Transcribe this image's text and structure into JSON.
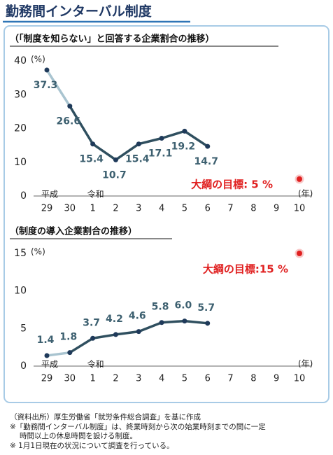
{
  "title": "勤務間インターバル制度",
  "chart_data": [
    {
      "type": "line",
      "subtitle": "（「制度を知らない」と回答する企業割合の推移）",
      "categories": [
        "29",
        "30",
        "1",
        "2",
        "3",
        "4",
        "5",
        "6",
        "7",
        "8",
        "9",
        "10"
      ],
      "era": [
        "平成",
        null,
        "令和",
        null,
        null,
        null,
        null,
        null,
        null,
        null,
        null,
        null
      ],
      "values": [
        37.3,
        26.6,
        15.4,
        10.7,
        15.4,
        17.1,
        19.2,
        14.7,
        null,
        null,
        null,
        null
      ],
      "color": "#2f4f5f",
      "first_segment_color": "#a9c4d0",
      "marker_color": "#1f3a5a",
      "label_position": "below",
      "ylim": [
        0,
        40
      ],
      "yticks": [
        0,
        10,
        20,
        30,
        40
      ],
      "y_unit": "(%)",
      "x_unit": "(年)",
      "target": {
        "value": 5,
        "label": "大綱の目標: 5 %",
        "color": "#e02020"
      }
    },
    {
      "type": "line",
      "subtitle": "（制度の導入企業割合の推移）",
      "categories": [
        "29",
        "30",
        "1",
        "2",
        "3",
        "4",
        "5",
        "6",
        "7",
        "8",
        "9",
        "10"
      ],
      "era": [
        "平成",
        null,
        "令和",
        null,
        null,
        null,
        null,
        null,
        null,
        null,
        null,
        null
      ],
      "values": [
        1.4,
        1.8,
        3.7,
        4.2,
        4.6,
        5.8,
        6.0,
        5.7,
        null,
        null,
        null,
        null
      ],
      "value_labels": [
        "1.4",
        "1.8",
        "3.7",
        "4.2",
        "4.6",
        "5.8",
        "6.0",
        "5.7",
        null,
        null,
        null,
        null
      ],
      "color": "#2f4f5f",
      "first_segment_color": "#a9c4d0",
      "marker_color": "#1f3a5a",
      "label_position": "above",
      "ylim": [
        0,
        15
      ],
      "yticks": [
        0,
        5,
        10,
        15
      ],
      "y_unit": "(%)",
      "x_unit": "(年)",
      "target": {
        "value": 15,
        "label": "大綱の目標:15 %",
        "color": "#e02020"
      }
    }
  ],
  "notes": [
    "（資料出所）厚生労働省「就労条件総合調査」を基に作成",
    "※「勤務間インターバル制度」は、終業時刻から次の始業時刻までの間に一定",
    "時間以上の休息時間を設ける制度。",
    "※ 1月1日現在の状況について調査を行っている。"
  ]
}
